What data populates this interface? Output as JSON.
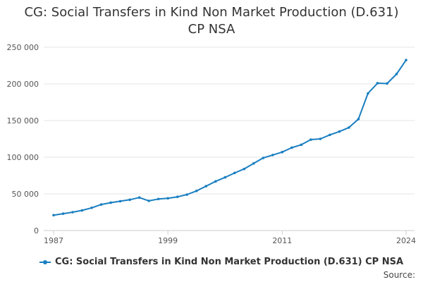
{
  "chart_data": {
    "type": "line",
    "title": "CG: Social Transfers in Kind Non Market Production (D.631)",
    "title_line2": "CP NSA",
    "xlabel": "",
    "ylabel": "",
    "x": [
      1987,
      1988,
      1989,
      1990,
      1991,
      1992,
      1993,
      1994,
      1995,
      1996,
      1997,
      1998,
      1999,
      2000,
      2001,
      2002,
      2003,
      2004,
      2005,
      2006,
      2007,
      2008,
      2009,
      2010,
      2011,
      2012,
      2013,
      2014,
      2015,
      2016,
      2017,
      2018,
      2019,
      2020,
      2021,
      2022,
      2023,
      2024
    ],
    "series": [
      {
        "name": "CG: Social Transfers in Kind Non Market Production (D.631) CP NSA",
        "color": "#1a7fc1",
        "values": [
          21000,
          23000,
          25000,
          27500,
          31000,
          35500,
          38000,
          40000,
          42000,
          45000,
          40500,
          43000,
          44000,
          46000,
          49000,
          54000,
          60500,
          67000,
          72500,
          78500,
          84000,
          91500,
          99000,
          103000,
          107000,
          113000,
          117000,
          124000,
          125000,
          130500,
          135000,
          140500,
          152000,
          187000,
          201000,
          200500,
          213500,
          232500
        ]
      }
    ],
    "ylim": [
      0,
      250000
    ],
    "yticks": [
      0,
      50000,
      100000,
      150000,
      200000,
      250000
    ],
    "ytick_labels": [
      "0",
      "50 000",
      "100 000",
      "150 000",
      "200 000",
      "250 000"
    ],
    "xticks": [
      1987,
      1999,
      2011,
      2024
    ],
    "xtick_labels": [
      "1987",
      "1999",
      "2011",
      "2024"
    ],
    "grid": true,
    "legend_position": "bottom-left",
    "source_label": "Source:"
  }
}
